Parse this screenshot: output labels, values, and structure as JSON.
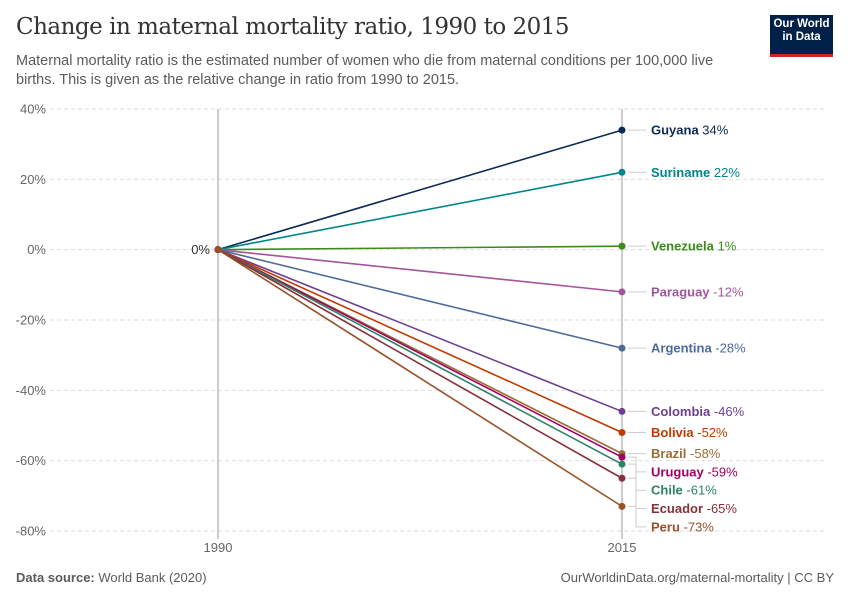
{
  "header": {
    "title": "Change in maternal mortality ratio, 1990 to 2015",
    "subtitle": "Maternal mortality ratio is the estimated number of women who die from maternal conditions per 100,000 live births. This is given as the relative change in ratio from 1990 to 2015.",
    "logo_line1": "Our World",
    "logo_line2": "in Data"
  },
  "footer": {
    "source_label": "Data source:",
    "source": "World Bank (2020)",
    "url": "OurWorldinData.org/maternal-mortality | CC BY"
  },
  "chart_data": {
    "type": "line",
    "x": [
      "1990",
      "2015"
    ],
    "ylim": [
      -80,
      40
    ],
    "yticks": [
      "40%",
      "20%",
      "0%",
      "-20%",
      "-40%",
      "-60%",
      "-80%"
    ],
    "ytick_values": [
      40,
      20,
      0,
      -20,
      -40,
      -60,
      -80
    ],
    "start_label": "0%",
    "grid": true,
    "series": [
      {
        "name": "Guyana",
        "values": [
          0,
          34
        ],
        "label": "34%",
        "color": "#0b2a55"
      },
      {
        "name": "Suriname",
        "values": [
          0,
          22
        ],
        "label": "22%",
        "color": "#00868a"
      },
      {
        "name": "Venezuela",
        "values": [
          0,
          1
        ],
        "label": "1%",
        "color": "#3a8b1a"
      },
      {
        "name": "Paraguay",
        "values": [
          0,
          -12
        ],
        "label": "-12%",
        "color": "#a2559c"
      },
      {
        "name": "Argentina",
        "values": [
          0,
          -28
        ],
        "label": "-28%",
        "color": "#4c6a9c"
      },
      {
        "name": "Colombia",
        "values": [
          0,
          -46
        ],
        "label": "-46%",
        "color": "#6d3e91"
      },
      {
        "name": "Bolivia",
        "values": [
          0,
          -52
        ],
        "label": "-52%",
        "color": "#c03a00"
      },
      {
        "name": "Brazil",
        "values": [
          0,
          -58
        ],
        "label": "-58%",
        "color": "#996d39"
      },
      {
        "name": "Uruguay",
        "values": [
          0,
          -59
        ],
        "label": "-59%",
        "color": "#a2005f"
      },
      {
        "name": "Chile",
        "values": [
          0,
          -61
        ],
        "label": "-61%",
        "color": "#2c8465"
      },
      {
        "name": "Ecuador",
        "values": [
          0,
          -65
        ],
        "label": "-65%",
        "color": "#883039"
      },
      {
        "name": "Peru",
        "values": [
          0,
          -73
        ],
        "label": "-73%",
        "color": "#9a5129"
      }
    ]
  }
}
